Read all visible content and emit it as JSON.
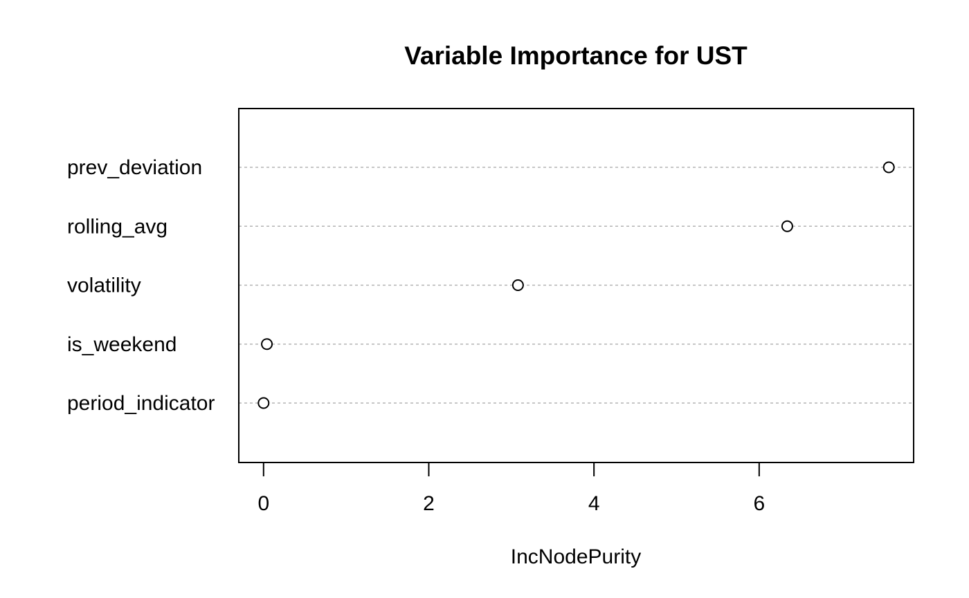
{
  "chart_data": {
    "type": "scatter",
    "title": "Variable Importance for UST",
    "xlabel": "IncNodePurity",
    "ylabel": "",
    "variables": [
      "prev_deviation",
      "rolling_avg",
      "volatility",
      "is_weekend",
      "period_indicator"
    ],
    "values": [
      7.57,
      6.34,
      3.08,
      0.04,
      0.0
    ],
    "xlim": [
      -0.3,
      7.87
    ],
    "xticks": [
      0,
      2,
      4,
      6
    ],
    "xtick_labels": [
      "0",
      "2",
      "4",
      "6"
    ],
    "grid": "dotted horizontal per variable",
    "marker": "open-circle"
  }
}
